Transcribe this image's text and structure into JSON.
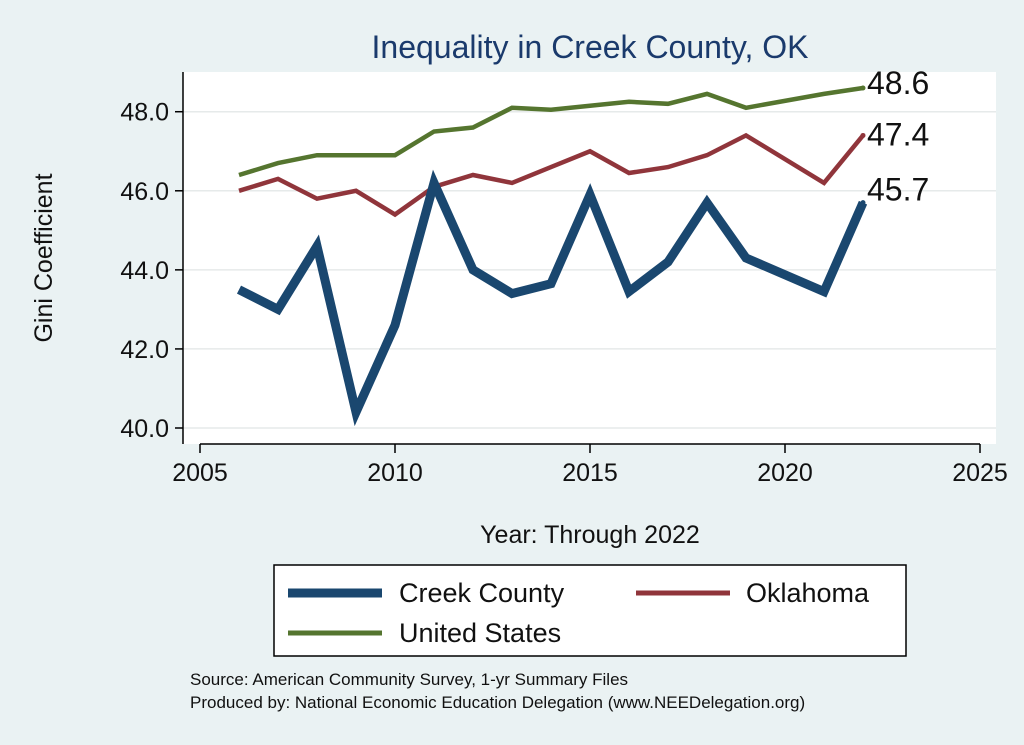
{
  "chart_data": {
    "type": "line",
    "title": "Inequality in Creek County, OK",
    "xlabel": "Year: Through 2022",
    "ylabel": "Gini Coefficient",
    "xlim": [
      2005,
      2025
    ],
    "ylim": [
      40.0,
      48.6
    ],
    "x_ticks": [
      2005,
      2010,
      2015,
      2020,
      2025
    ],
    "y_ticks": [
      40,
      42,
      44,
      46,
      48
    ],
    "y_tick_labels": [
      "40.0",
      "42.0",
      "44.0",
      "46.0",
      "48.0"
    ],
    "grid": true,
    "legend_position": "bottom",
    "series": [
      {
        "name": "Creek County",
        "color": "#1a476f",
        "width": "thick",
        "x": [
          2006,
          2007,
          2008,
          2009,
          2010,
          2011,
          2012,
          2013,
          2014,
          2015,
          2016,
          2017,
          2018,
          2019,
          2021,
          2022
        ],
        "values": [
          43.5,
          43.0,
          44.6,
          40.4,
          42.6,
          46.2,
          44.0,
          43.4,
          43.65,
          45.9,
          43.45,
          44.2,
          45.7,
          44.3,
          43.45,
          45.7
        ],
        "end_label": "45.7"
      },
      {
        "name": "Oklahoma",
        "color": "#90353b",
        "width": "medium",
        "x": [
          2006,
          2007,
          2008,
          2009,
          2010,
          2011,
          2012,
          2013,
          2014,
          2015,
          2016,
          2017,
          2018,
          2019,
          2021,
          2022
        ],
        "values": [
          46.0,
          46.3,
          45.8,
          46.0,
          45.4,
          46.1,
          46.4,
          46.2,
          46.6,
          47.0,
          46.45,
          46.6,
          46.9,
          47.4,
          46.2,
          47.4
        ],
        "end_label": "47.4"
      },
      {
        "name": "United States",
        "color": "#55752f",
        "width": "medium",
        "x": [
          2006,
          2007,
          2008,
          2009,
          2010,
          2011,
          2012,
          2013,
          2014,
          2015,
          2016,
          2017,
          2018,
          2019,
          2021,
          2022
        ],
        "values": [
          46.4,
          46.7,
          46.9,
          46.9,
          46.9,
          47.5,
          47.6,
          48.1,
          48.05,
          48.15,
          48.25,
          48.2,
          48.45,
          48.1,
          48.45,
          48.6
        ],
        "end_label": "48.6"
      }
    ]
  },
  "source": {
    "line1": "Source: American Community Survey, 1-yr Summary Files",
    "line2": "Produced by: National Economic Education Delegation (www.NEEDelegation.org)"
  }
}
